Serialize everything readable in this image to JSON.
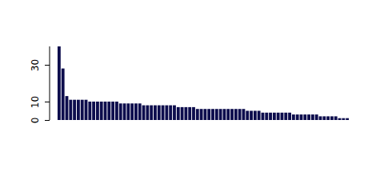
{
  "chart_data": {
    "type": "bar",
    "categories": [
      null,
      null,
      null,
      null,
      null,
      null,
      null,
      null,
      null,
      null,
      null,
      null,
      null,
      null,
      null,
      null,
      null,
      null,
      null,
      null,
      null,
      null,
      null,
      null,
      null,
      null,
      null,
      null,
      null,
      null,
      null,
      null,
      null,
      null,
      null,
      null,
      null,
      null,
      null,
      null,
      null,
      null,
      null,
      null,
      null,
      null,
      null,
      null,
      null,
      null,
      null,
      null,
      null,
      null,
      null,
      null,
      null,
      null,
      null,
      null,
      null,
      null,
      null,
      null,
      null,
      null,
      null,
      null,
      null,
      null,
      null,
      null,
      null,
      null,
      null,
      null
    ],
    "values": [
      40,
      28,
      13,
      11,
      11,
      11,
      11,
      11,
      10,
      10,
      10,
      10,
      10,
      10,
      10,
      10,
      9,
      9,
      9,
      9,
      9,
      9,
      8,
      8,
      8,
      8,
      8,
      8,
      8,
      8,
      8,
      7,
      7,
      7,
      7,
      7,
      6,
      6,
      6,
      6,
      6,
      6,
      6,
      6,
      6,
      6,
      6,
      6,
      6,
      5,
      5,
      5,
      5,
      4,
      4,
      4,
      4,
      4,
      4,
      4,
      4,
      3,
      3,
      3,
      3,
      3,
      3,
      3,
      2,
      2,
      2,
      2,
      2,
      1,
      1,
      1
    ],
    "color": "#0d0d4d",
    "ylim": [
      0,
      40
    ],
    "yticks": [
      0,
      10,
      30
    ],
    "tick_labels": "y"
  }
}
